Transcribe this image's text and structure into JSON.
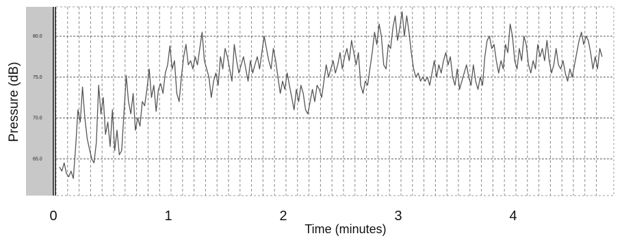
{
  "chart_data": {
    "type": "line",
    "xlabel": "Time (minutes)",
    "ylabel": "Pressure (dB)",
    "xlim": [
      0,
      4.75
    ],
    "ylim": [
      61,
      83.5
    ],
    "x_ticks": [
      {
        "value": 0,
        "label": "0"
      },
      {
        "value": 1,
        "label": "1"
      },
      {
        "value": 2,
        "label": "2"
      },
      {
        "value": 3,
        "label": "3"
      },
      {
        "value": 4,
        "label": "4"
      }
    ],
    "y_ticks": [
      {
        "value": 65,
        "label": "65.0"
      },
      {
        "value": 70,
        "label": "70.0"
      },
      {
        "value": 75,
        "label": "75.0"
      },
      {
        "value": 80,
        "label": "80.0"
      }
    ],
    "grid": "dashed",
    "series": [
      {
        "color": "#555555",
        "points": [
          [
            0.03,
            64.0
          ],
          [
            0.05,
            63.5
          ],
          [
            0.07,
            64.5
          ],
          [
            0.09,
            63.2
          ],
          [
            0.11,
            62.8
          ],
          [
            0.13,
            63.5
          ],
          [
            0.15,
            62.6
          ],
          [
            0.17,
            66.5
          ],
          [
            0.19,
            71.0
          ],
          [
            0.21,
            69.5
          ],
          [
            0.23,
            73.8
          ],
          [
            0.25,
            70.0
          ],
          [
            0.27,
            67.5
          ],
          [
            0.29,
            66.2
          ],
          [
            0.31,
            65.0
          ],
          [
            0.33,
            64.5
          ],
          [
            0.35,
            67.0
          ],
          [
            0.37,
            74.0
          ],
          [
            0.39,
            70.5
          ],
          [
            0.41,
            72.5
          ],
          [
            0.43,
            68.0
          ],
          [
            0.45,
            69.5
          ],
          [
            0.47,
            66.5
          ],
          [
            0.49,
            71.0
          ],
          [
            0.51,
            66.0
          ],
          [
            0.53,
            68.5
          ],
          [
            0.55,
            65.5
          ],
          [
            0.57,
            66.0
          ],
          [
            0.59,
            70.5
          ],
          [
            0.61,
            75.2
          ],
          [
            0.63,
            72.0
          ],
          [
            0.65,
            70.5
          ],
          [
            0.67,
            73.0
          ],
          [
            0.69,
            68.5
          ],
          [
            0.71,
            70.0
          ],
          [
            0.73,
            69.0
          ],
          [
            0.75,
            72.0
          ],
          [
            0.77,
            71.5
          ],
          [
            0.79,
            73.5
          ],
          [
            0.81,
            76.0
          ],
          [
            0.83,
            72.5
          ],
          [
            0.85,
            74.0
          ],
          [
            0.87,
            70.8
          ],
          [
            0.89,
            73.5
          ],
          [
            0.91,
            74.2
          ],
          [
            0.93,
            73.0
          ],
          [
            0.95,
            75.5
          ],
          [
            0.97,
            76.5
          ],
          [
            0.99,
            78.8
          ],
          [
            1.01,
            76.0
          ],
          [
            1.03,
            77.0
          ],
          [
            1.05,
            73.0
          ],
          [
            1.07,
            72.0
          ],
          [
            1.09,
            75.0
          ],
          [
            1.11,
            77.5
          ],
          [
            1.13,
            79.0
          ],
          [
            1.15,
            76.5
          ],
          [
            1.17,
            77.0
          ],
          [
            1.19,
            76.0
          ],
          [
            1.21,
            77.5
          ],
          [
            1.23,
            76.5
          ],
          [
            1.25,
            78.5
          ],
          [
            1.27,
            80.5
          ],
          [
            1.29,
            77.0
          ],
          [
            1.31,
            76.0
          ],
          [
            1.33,
            75.0
          ],
          [
            1.35,
            72.5
          ],
          [
            1.37,
            74.5
          ],
          [
            1.39,
            75.5
          ],
          [
            1.41,
            74.0
          ],
          [
            1.43,
            77.5
          ],
          [
            1.45,
            76.0
          ],
          [
            1.47,
            78.5
          ],
          [
            1.49,
            77.5
          ],
          [
            1.51,
            76.0
          ],
          [
            1.53,
            74.5
          ],
          [
            1.55,
            79.0
          ],
          [
            1.57,
            77.0
          ],
          [
            1.59,
            75.5
          ],
          [
            1.61,
            76.5
          ],
          [
            1.63,
            77.5
          ],
          [
            1.65,
            76.0
          ],
          [
            1.67,
            74.5
          ],
          [
            1.69,
            77.0
          ],
          [
            1.71,
            75.5
          ],
          [
            1.73,
            76.5
          ],
          [
            1.75,
            77.5
          ],
          [
            1.77,
            76.0
          ],
          [
            1.79,
            78.0
          ],
          [
            1.81,
            80.0
          ],
          [
            1.83,
            78.5
          ],
          [
            1.85,
            77.0
          ],
          [
            1.87,
            76.0
          ],
          [
            1.89,
            78.5
          ],
          [
            1.91,
            77.0
          ],
          [
            1.93,
            75.0
          ],
          [
            1.95,
            73.0
          ],
          [
            1.97,
            74.5
          ],
          [
            1.99,
            73.5
          ],
          [
            2.01,
            75.5
          ],
          [
            2.03,
            74.0
          ],
          [
            2.05,
            72.5
          ],
          [
            2.07,
            71.0
          ],
          [
            2.09,
            73.5
          ],
          [
            2.11,
            72.0
          ],
          [
            2.13,
            74.0
          ],
          [
            2.15,
            73.0
          ],
          [
            2.17,
            71.0
          ],
          [
            2.19,
            70.5
          ],
          [
            2.21,
            72.0
          ],
          [
            2.23,
            73.5
          ],
          [
            2.25,
            72.0
          ],
          [
            2.27,
            74.0
          ],
          [
            2.29,
            73.5
          ],
          [
            2.31,
            72.5
          ],
          [
            2.33,
            74.5
          ],
          [
            2.35,
            76.5
          ],
          [
            2.37,
            75.0
          ],
          [
            2.39,
            76.0
          ],
          [
            2.41,
            77.0
          ],
          [
            2.43,
            75.5
          ],
          [
            2.45,
            76.5
          ],
          [
            2.47,
            78.0
          ],
          [
            2.49,
            76.0
          ],
          [
            2.51,
            77.5
          ],
          [
            2.53,
            78.5
          ],
          [
            2.55,
            77.0
          ],
          [
            2.57,
            79.5
          ],
          [
            2.59,
            78.0
          ],
          [
            2.61,
            76.5
          ],
          [
            2.63,
            78.0
          ],
          [
            2.65,
            74.0
          ],
          [
            2.67,
            73.0
          ],
          [
            2.69,
            74.5
          ],
          [
            2.71,
            74.0
          ],
          [
            2.73,
            76.0
          ],
          [
            2.75,
            78.0
          ],
          [
            2.77,
            80.5
          ],
          [
            2.79,
            79.0
          ],
          [
            2.81,
            81.5
          ],
          [
            2.83,
            80.0
          ],
          [
            2.85,
            76.5
          ],
          [
            2.87,
            76.0
          ],
          [
            2.89,
            79.0
          ],
          [
            2.91,
            78.5
          ],
          [
            2.93,
            81.0
          ],
          [
            2.95,
            82.5
          ],
          [
            2.97,
            79.5
          ],
          [
            2.99,
            81.0
          ],
          [
            3.01,
            83.0
          ],
          [
            3.03,
            80.0
          ],
          [
            3.05,
            82.5
          ],
          [
            3.07,
            80.5
          ],
          [
            3.09,
            78.0
          ],
          [
            3.11,
            76.0
          ],
          [
            3.13,
            75.0
          ],
          [
            3.15,
            75.5
          ],
          [
            3.17,
            74.5
          ],
          [
            3.19,
            75.0
          ],
          [
            3.21,
            74.5
          ],
          [
            3.23,
            75.0
          ],
          [
            3.25,
            74.0
          ],
          [
            3.27,
            75.5
          ],
          [
            3.29,
            77.0
          ],
          [
            3.31,
            75.0
          ],
          [
            3.33,
            76.5
          ],
          [
            3.35,
            75.5
          ],
          [
            3.37,
            77.0
          ],
          [
            3.39,
            78.0
          ],
          [
            3.41,
            76.5
          ],
          [
            3.43,
            77.5
          ],
          [
            3.45,
            75.0
          ],
          [
            3.47,
            74.0
          ],
          [
            3.49,
            76.0
          ],
          [
            3.51,
            73.5
          ],
          [
            3.53,
            74.5
          ],
          [
            3.55,
            75.5
          ],
          [
            3.57,
            76.5
          ],
          [
            3.59,
            75.0
          ],
          [
            3.61,
            74.0
          ],
          [
            3.63,
            76.5
          ],
          [
            3.65,
            74.5
          ],
          [
            3.67,
            73.5
          ],
          [
            3.69,
            75.0
          ],
          [
            3.71,
            74.0
          ],
          [
            3.73,
            77.5
          ],
          [
            3.75,
            79.5
          ],
          [
            3.77,
            80.0
          ],
          [
            3.79,
            78.5
          ],
          [
            3.81,
            79.0
          ],
          [
            3.83,
            77.0
          ],
          [
            3.85,
            75.5
          ],
          [
            3.87,
            77.0
          ],
          [
            3.89,
            76.0
          ],
          [
            3.91,
            79.0
          ],
          [
            3.93,
            78.0
          ],
          [
            3.95,
            81.5
          ],
          [
            3.97,
            80.0
          ],
          [
            3.99,
            77.0
          ],
          [
            4.01,
            76.0
          ],
          [
            4.03,
            78.5
          ],
          [
            4.05,
            77.0
          ],
          [
            4.07,
            80.0
          ],
          [
            4.09,
            79.0
          ],
          [
            4.11,
            76.5
          ],
          [
            4.13,
            75.5
          ],
          [
            4.15,
            77.0
          ],
          [
            4.17,
            76.0
          ],
          [
            4.19,
            79.0
          ],
          [
            4.21,
            77.5
          ],
          [
            4.23,
            78.5
          ],
          [
            4.25,
            77.0
          ],
          [
            4.27,
            79.5
          ],
          [
            4.29,
            77.0
          ],
          [
            4.31,
            75.5
          ],
          [
            4.33,
            76.5
          ],
          [
            4.35,
            78.5
          ],
          [
            4.37,
            76.5
          ],
          [
            4.39,
            76.0
          ],
          [
            4.41,
            77.0
          ],
          [
            4.43,
            75.5
          ],
          [
            4.45,
            74.5
          ],
          [
            4.47,
            76.0
          ],
          [
            4.49,
            75.0
          ],
          [
            4.51,
            76.5
          ],
          [
            4.53,
            78.0
          ],
          [
            4.55,
            79.5
          ],
          [
            4.57,
            80.5
          ],
          [
            4.59,
            79.0
          ],
          [
            4.61,
            80.0
          ],
          [
            4.63,
            79.5
          ],
          [
            4.65,
            78.0
          ],
          [
            4.67,
            76.0
          ],
          [
            4.69,
            77.5
          ],
          [
            4.71,
            76.0
          ],
          [
            4.73,
            78.5
          ],
          [
            4.75,
            77.5
          ]
        ]
      }
    ]
  }
}
